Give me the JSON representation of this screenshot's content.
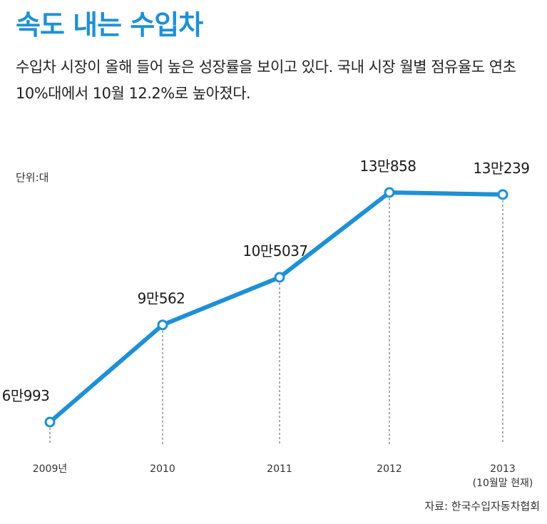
{
  "header": {
    "title": "속도 내는 수입차",
    "subtitle": "수입차 시장이 올해 들어 높은 성장률을 보이고 있다. 국내 시장 월별 점유율도 연초 10%대에서 10월 12.2%로 높아졌다."
  },
  "unit_label": "단위:대",
  "source": "자료: 한국수입자동차협회",
  "colors": {
    "accent": "#1e90d6",
    "line": "#1e90d6"
  },
  "chart_data": {
    "type": "line",
    "title": "속도 내는 수입차",
    "categories": [
      "2009년",
      "2010",
      "2011",
      "2012",
      "2013"
    ],
    "category_notes": [
      "",
      "",
      "",
      "",
      "(10월말 현재)"
    ],
    "series": [
      {
        "values": [
          60993,
          90562,
          105037,
          130858,
          130239
        ]
      }
    ],
    "data_labels": [
      "6만993",
      "9만562",
      "10만5037",
      "13만858",
      "13만239"
    ],
    "ylim": [
      55000,
      135000
    ],
    "grid": false,
    "drop_lines": true
  }
}
